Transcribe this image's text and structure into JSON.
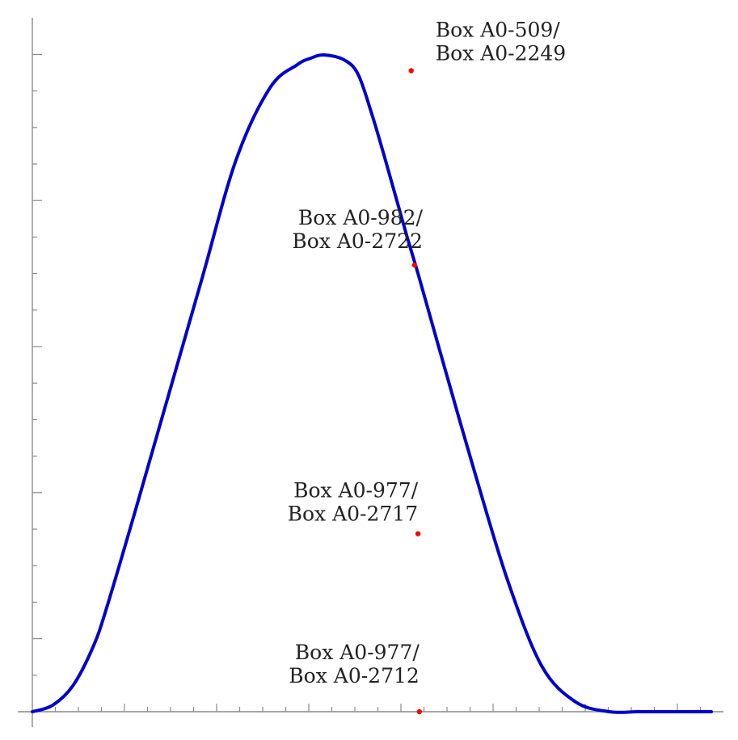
{
  "chart_data": {
    "type": "line",
    "title": "",
    "xlabel": "",
    "ylabel": "",
    "xlim": [
      0,
      1
    ],
    "ylim": [
      0,
      1
    ],
    "grid": false,
    "legend": "none",
    "series": [
      {
        "color": "#0000cc",
        "x": [
          0.0,
          0.03,
          0.06,
          0.09,
          0.11,
          0.15,
          0.2,
          0.25,
          0.3,
          0.35,
          0.39,
          0.41,
          0.43,
          0.46,
          0.48,
          0.5,
          0.52,
          0.55,
          0.57,
          0.6,
          0.65,
          0.7,
          0.75,
          0.8,
          0.85,
          0.89,
          0.91,
          0.94,
          0.97,
          1.0
        ],
        "y": [
          0.0,
          0.01,
          0.04,
          0.1,
          0.16,
          0.3,
          0.48,
          0.66,
          0.84,
          0.95,
          0.985,
          0.995,
          1.0,
          0.992,
          0.97,
          0.91,
          0.84,
          0.73,
          0.66,
          0.55,
          0.37,
          0.2,
          0.07,
          0.015,
          0.0,
          0.0,
          0.0,
          0.0,
          0.0,
          0.0
        ]
      }
    ],
    "points": [
      {
        "x": 0.558,
        "y": 0.976,
        "color": "#ff0000",
        "label_lines": [
          "Box A0-509/",
          "Box A0-2249"
        ]
      },
      {
        "x": 0.563,
        "y": 0.68,
        "color": "#ff0000",
        "label_lines": [
          "Box A0-982/",
          "Box A0-2722"
        ]
      },
      {
        "x": 0.568,
        "y": 0.271,
        "color": "#ff0000",
        "label_lines": [
          "Box A0-977/",
          "Box A0-2717"
        ]
      },
      {
        "x": 0.57,
        "y": 0.0,
        "color": "#ff0000",
        "label_lines": [
          "Box A0-977/",
          "Box A0-2712"
        ]
      }
    ]
  }
}
